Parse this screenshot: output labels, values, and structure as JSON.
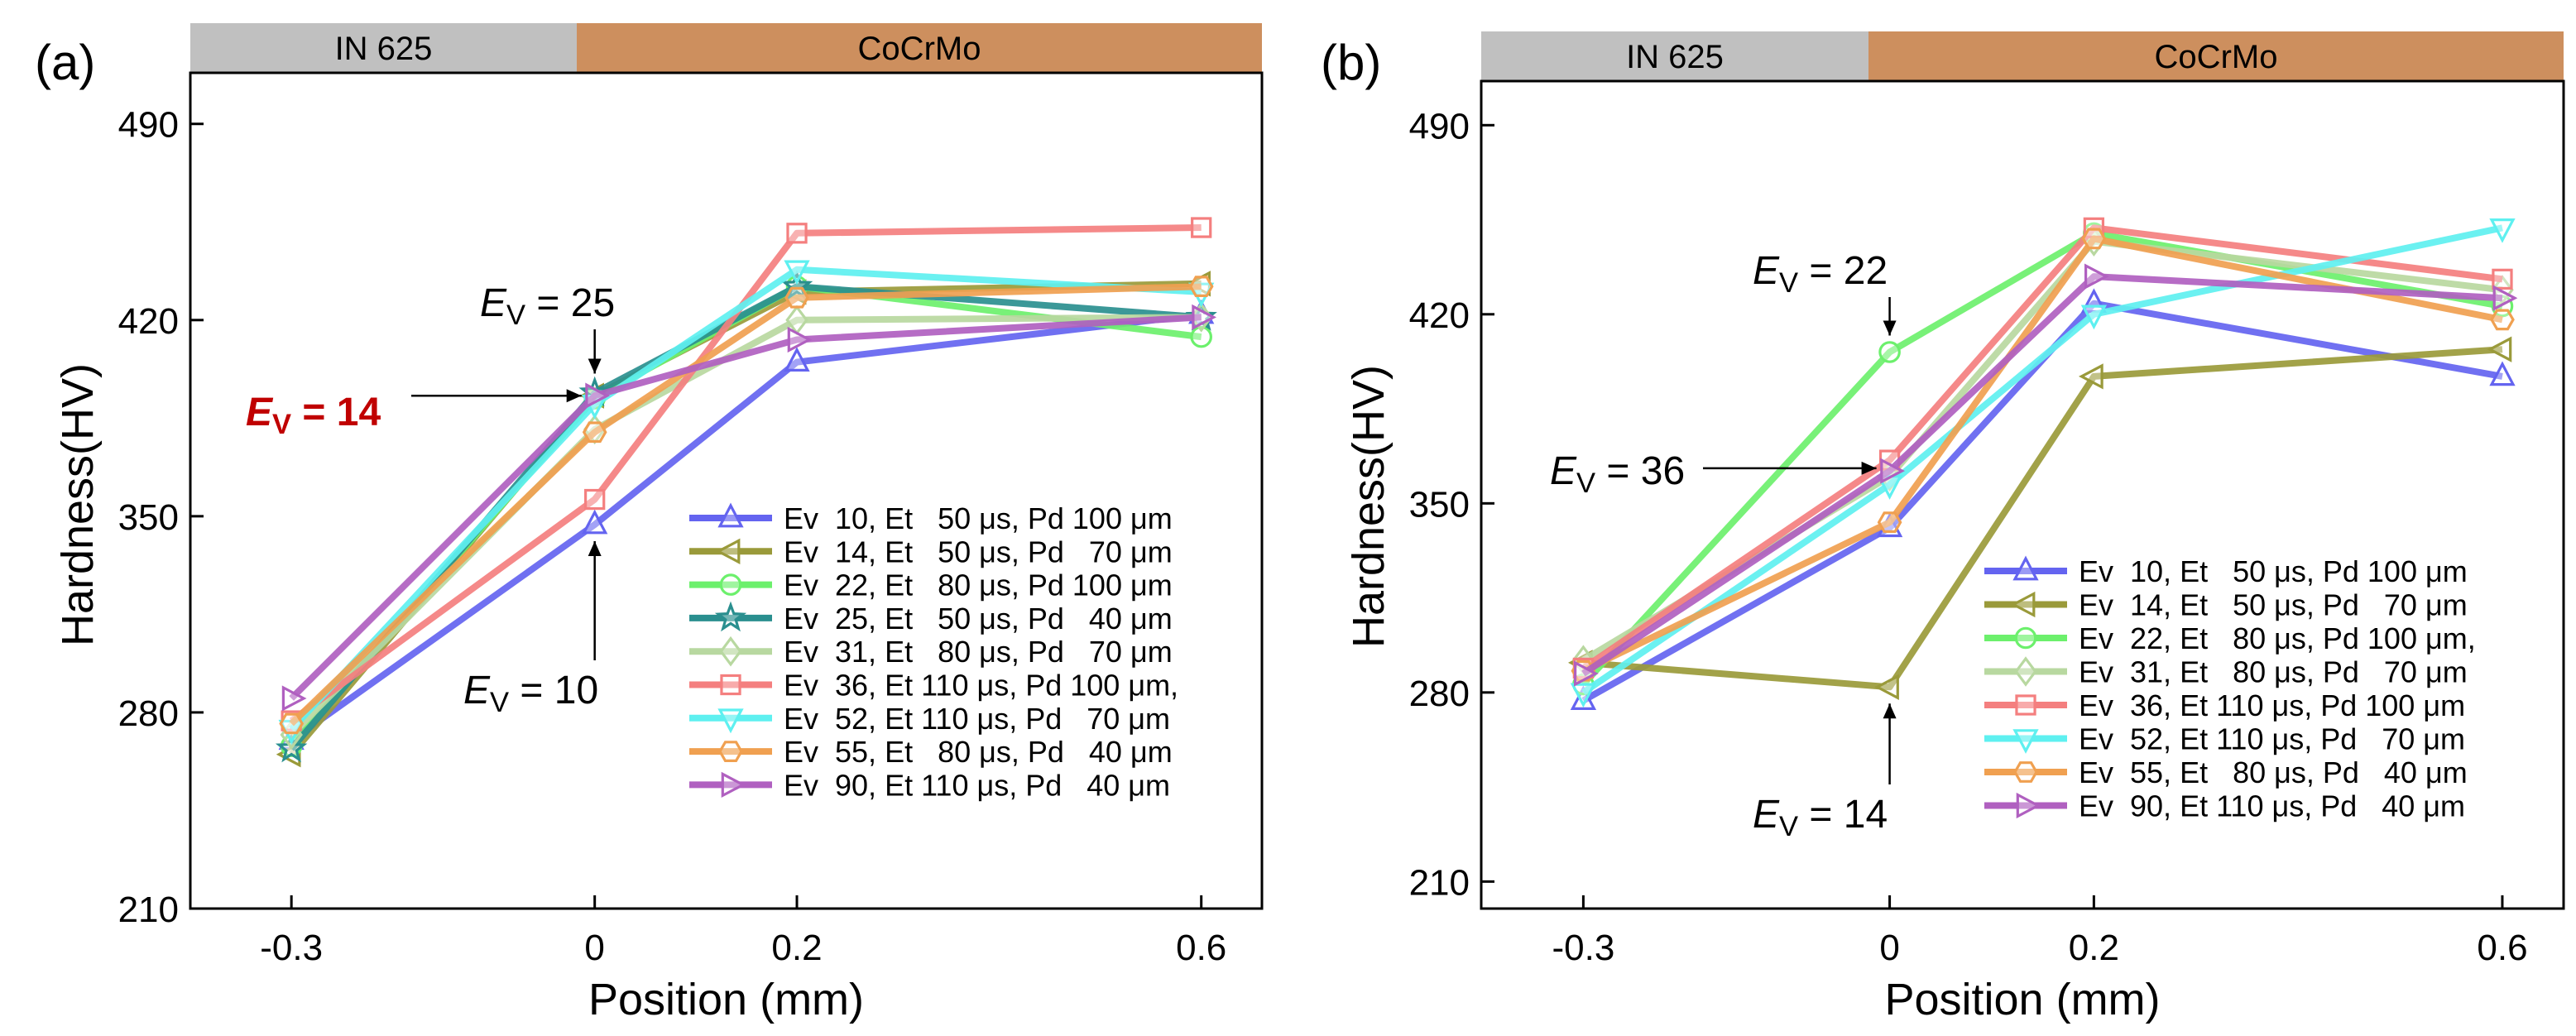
{
  "colors": {
    "zone_in625": "#c0c0c0",
    "zone_cocrmo": "#cd8f5e"
  },
  "series_styles": [
    {
      "color": "#6464f0",
      "marker": "triangle-up"
    },
    {
      "color": "#9a9a3a",
      "marker": "triangle-left"
    },
    {
      "color": "#6cf06c",
      "marker": "circle"
    },
    {
      "color": "#2a8f8f",
      "marker": "star"
    },
    {
      "color": "#b8d8a0",
      "marker": "diamond"
    },
    {
      "color": "#f47f7f",
      "marker": "square"
    },
    {
      "color": "#5ef0f0",
      "marker": "triangle-down"
    },
    {
      "color": "#f0a050",
      "marker": "hexagon"
    },
    {
      "color": "#b060c0",
      "marker": "triangle-right"
    }
  ],
  "chart_data": [
    {
      "type": "line",
      "panel_label": "(a)",
      "zones": [
        "IN 625",
        "CoCrMo"
      ],
      "xlabel": "Position (mm)",
      "ylabel": "Hardness(HV)",
      "x": [
        -0.3,
        0,
        0.2,
        0.6
      ],
      "x_tick_labels": [
        "-0.3",
        "0",
        "0.2",
        "0.6"
      ],
      "xlim": [
        -0.4,
        0.66
      ],
      "ylim": [
        210,
        510
      ],
      "yticks": [
        210,
        280,
        350,
        420,
        490
      ],
      "series": [
        {
          "style": 0,
          "legend": "Ev  10, Et   50 μs, Pd 100 μm",
          "values": [
            270,
            347,
            405,
            422
          ]
        },
        {
          "style": 1,
          "legend": "Ev  14, Et   50 μs, Pd   70 μm",
          "values": [
            265,
            393,
            430,
            433
          ]
        },
        {
          "style": 2,
          "legend": "Ev  22, Et   80 μs, Pd 100 μm",
          "values": [
            268,
            392,
            432,
            414
          ]
        },
        {
          "style": 3,
          "legend": "Ev  25, Et   50 μs, Pd   40 μm",
          "values": [
            267,
            394,
            432,
            421
          ]
        },
        {
          "style": 4,
          "legend": "Ev  31, Et   80 μs, Pd   70 μm",
          "values": [
            272,
            381,
            420,
            421
          ]
        },
        {
          "style": 5,
          "legend": "Ev  36, Et 110 μs, Pd 100 μm,",
          "values": [
            277,
            356,
            451,
            453
          ]
        },
        {
          "style": 6,
          "legend": "Ev  52, Et 110 μs, Pd   70 μm",
          "values": [
            274,
            390,
            438,
            430
          ]
        },
        {
          "style": 7,
          "legend": "Ev  55, Et   80 μs, Pd   40 μm",
          "values": [
            276,
            380,
            428,
            432
          ]
        },
        {
          "style": 8,
          "legend": "Ev  90, Et 110 μs, Pd   40 μm",
          "values": [
            285,
            393,
            413,
            421
          ]
        }
      ],
      "annotations": [
        {
          "base": "E",
          "sub": "V",
          "value": " = 25",
          "x": 0,
          "y": 395,
          "from": "top",
          "emph": false
        },
        {
          "base": "E",
          "sub": "V",
          "value": " = 14",
          "x": 0,
          "y": 393,
          "from": "left",
          "emph": true
        },
        {
          "base": "E",
          "sub": "V",
          "value": " = 10",
          "x": 0,
          "y": 347,
          "from": "bottom",
          "emph": false
        }
      ]
    },
    {
      "type": "line",
      "panel_label": "(b)",
      "zones": [
        "IN 625",
        "CoCrMo"
      ],
      "xlabel": "Position (mm)",
      "ylabel": "Hardness(HV)",
      "x": [
        -0.3,
        0,
        0.2,
        0.6
      ],
      "x_tick_labels": [
        "-0.3",
        "0",
        "0.2",
        "0.6"
      ],
      "xlim": [
        -0.4,
        0.66
      ],
      "ylim": [
        200,
        510
      ],
      "yticks": [
        210,
        280,
        350,
        420,
        490
      ],
      "series": [
        {
          "style": 0,
          "legend": "Ev  10, Et   50 μs, Pd 100 μm",
          "values": [
            277,
            341,
            424,
            397
          ]
        },
        {
          "style": 1,
          "legend": "Ev  14, Et   50 μs, Pd   70 μm",
          "values": [
            291,
            282,
            397,
            407
          ]
        },
        {
          "style": 2,
          "legend": "Ev  22, Et   80 μs, Pd 100 μm,",
          "values": [
            283,
            406,
            450,
            423
          ]
        },
        {
          "style": 4,
          "legend": "Ev  31, Et   80 μs, Pd   70 μm",
          "values": [
            292,
            360,
            447,
            429
          ]
        },
        {
          "style": 5,
          "legend": "Ev  36, Et 110 μs, Pd 100 μm",
          "values": [
            289,
            366,
            452,
            433
          ]
        },
        {
          "style": 6,
          "legend": "Ev  52, Et 110 μs, Pd   70 μm",
          "values": [
            280,
            357,
            420,
            452
          ]
        },
        {
          "style": 7,
          "legend": "Ev  55, Et   80 μs, Pd   40 μm",
          "values": [
            288,
            343,
            448,
            418
          ]
        },
        {
          "style": 8,
          "legend": "Ev  90, Et 110 μs, Pd   40 μm",
          "values": [
            287,
            362,
            434,
            426
          ]
        }
      ],
      "annotations": [
        {
          "base": "E",
          "sub": "V",
          "value": " = 22",
          "x": 0,
          "y": 406,
          "from": "top",
          "emph": false
        },
        {
          "base": "E",
          "sub": "V",
          "value": " = 36",
          "x": 0,
          "y": 363,
          "from": "left",
          "emph": false
        },
        {
          "base": "E",
          "sub": "V",
          "value": " = 14",
          "x": 0,
          "y": 282,
          "from": "bottom",
          "emph": false
        }
      ]
    }
  ]
}
